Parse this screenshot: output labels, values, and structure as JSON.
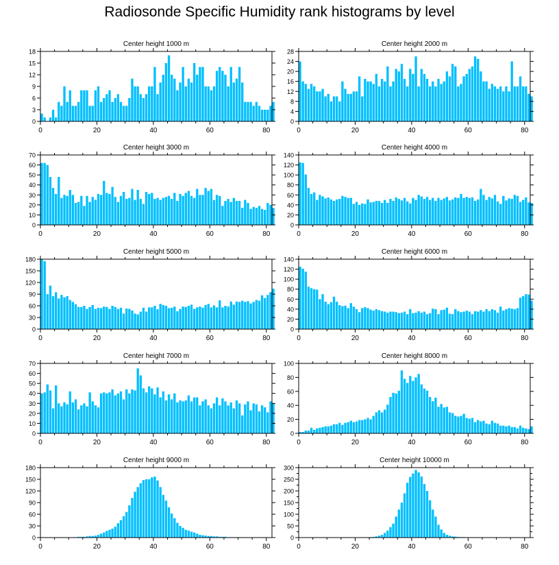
{
  "title": "Radiosonde Specific Humidity rank histograms by level",
  "colors": {
    "bar": "#00bfff",
    "axis": "#000000"
  },
  "chart_data": [
    {
      "type": "bar",
      "title": "Center height 1000 m",
      "xlim": [
        0,
        82
      ],
      "ylim": [
        0,
        18
      ],
      "xticks": [
        0,
        20,
        40,
        60,
        80
      ],
      "yticks": [
        0,
        3,
        6,
        9,
        12,
        15,
        18
      ],
      "values": [
        2,
        1,
        0,
        1,
        3,
        1,
        5,
        4,
        9,
        5,
        8,
        4,
        4,
        5,
        8,
        8,
        8,
        4,
        4,
        8,
        9,
        5,
        6,
        7,
        8,
        5,
        6,
        7,
        5,
        4,
        4,
        6,
        11,
        9,
        9,
        7,
        6,
        7,
        9,
        9,
        14,
        7,
        10,
        12,
        15,
        17,
        12,
        11,
        8,
        10,
        14,
        9,
        11,
        10,
        15,
        12,
        14,
        14,
        9,
        9,
        8,
        9,
        13,
        14,
        13,
        12,
        9,
        14,
        10,
        11,
        14,
        10,
        5,
        5,
        5,
        4,
        5,
        4,
        3,
        3,
        3,
        4,
        5
      ]
    },
    {
      "type": "bar",
      "title": "Center height 2000 m",
      "xlim": [
        0,
        82
      ],
      "ylim": [
        0,
        28
      ],
      "xticks": [
        0,
        20,
        40,
        60,
        80
      ],
      "yticks": [
        0,
        4,
        8,
        12,
        16,
        20,
        24,
        28
      ],
      "values": [
        24,
        16,
        15,
        13,
        15,
        14,
        12,
        12,
        13,
        10,
        11,
        8,
        10,
        10,
        8,
        16,
        13,
        11,
        11,
        12,
        12,
        18,
        10,
        17,
        16,
        16,
        15,
        19,
        14,
        17,
        16,
        22,
        14,
        16,
        21,
        20,
        23,
        17,
        14,
        21,
        19,
        26,
        14,
        21,
        19,
        17,
        14,
        16,
        14,
        17,
        15,
        16,
        20,
        18,
        23,
        22,
        14,
        15,
        18,
        19,
        21,
        22,
        26,
        25,
        20,
        16,
        16,
        13,
        15,
        14,
        13,
        14,
        12,
        14,
        12,
        24,
        14,
        14,
        18,
        14,
        14,
        11,
        10
      ]
    },
    {
      "type": "bar",
      "title": "Center height 3000 m",
      "xlim": [
        0,
        82
      ],
      "ylim": [
        0,
        70
      ],
      "xticks": [
        0,
        20,
        40,
        60,
        80
      ],
      "yticks": [
        0,
        10,
        20,
        30,
        40,
        50,
        60,
        70
      ],
      "values": [
        62,
        62,
        60,
        48,
        37,
        31,
        48,
        27,
        30,
        29,
        35,
        30,
        22,
        23,
        29,
        19,
        29,
        23,
        28,
        25,
        31,
        30,
        44,
        32,
        31,
        38,
        28,
        23,
        29,
        33,
        26,
        27,
        36,
        25,
        35,
        26,
        21,
        33,
        31,
        32,
        26,
        27,
        25,
        27,
        28,
        29,
        26,
        32,
        24,
        31,
        29,
        32,
        34,
        29,
        27,
        36,
        30,
        30,
        37,
        34,
        36,
        25,
        30,
        29,
        19,
        24,
        26,
        23,
        27,
        24,
        24,
        17,
        25,
        22,
        16,
        18,
        17,
        19,
        16,
        15,
        22,
        20,
        17
      ]
    },
    {
      "type": "bar",
      "title": "Center height 4000 m",
      "xlim": [
        0,
        82
      ],
      "ylim": [
        0,
        140
      ],
      "xticks": [
        0,
        20,
        40,
        60,
        80
      ],
      "yticks": [
        0,
        20,
        40,
        60,
        80,
        100,
        120,
        140
      ],
      "values": [
        125,
        124,
        101,
        74,
        62,
        65,
        50,
        60,
        57,
        53,
        55,
        51,
        48,
        51,
        52,
        58,
        56,
        54,
        54,
        42,
        46,
        40,
        43,
        42,
        51,
        45,
        46,
        48,
        48,
        44,
        50,
        44,
        52,
        48,
        55,
        52,
        49,
        54,
        47,
        43,
        54,
        50,
        60,
        57,
        52,
        56,
        50,
        54,
        48,
        54,
        50,
        53,
        56,
        49,
        51,
        55,
        54,
        62,
        54,
        56,
        54,
        55,
        48,
        51,
        72,
        60,
        50,
        56,
        53,
        60,
        47,
        42,
        58,
        49,
        53,
        52,
        60,
        58,
        46,
        50,
        55,
        45,
        44
      ]
    },
    {
      "type": "bar",
      "title": "Center height 5000 m",
      "xlim": [
        0,
        82
      ],
      "ylim": [
        0,
        180
      ],
      "xticks": [
        0,
        20,
        40,
        60,
        80
      ],
      "yticks": [
        0,
        30,
        60,
        90,
        120,
        150,
        180
      ],
      "values": [
        180,
        175,
        90,
        112,
        85,
        95,
        79,
        88,
        82,
        85,
        75,
        70,
        64,
        57,
        57,
        60,
        52,
        57,
        62,
        52,
        55,
        54,
        58,
        57,
        52,
        60,
        57,
        52,
        55,
        40,
        53,
        52,
        48,
        40,
        38,
        45,
        55,
        45,
        56,
        56,
        60,
        51,
        65,
        62,
        60,
        54,
        55,
        58,
        46,
        52,
        58,
        57,
        60,
        63,
        52,
        56,
        58,
        55,
        62,
        65,
        56,
        61,
        56,
        74,
        56,
        60,
        58,
        71,
        63,
        71,
        70,
        73,
        70,
        72,
        66,
        70,
        75,
        73,
        87,
        80,
        88,
        95,
        104
      ]
    },
    {
      "type": "bar",
      "title": "Center height 6000 m",
      "xlim": [
        0,
        82
      ],
      "ylim": [
        0,
        140
      ],
      "xticks": [
        0,
        20,
        40,
        60,
        80
      ],
      "yticks": [
        0,
        20,
        40,
        60,
        80,
        100,
        120,
        140
      ],
      "values": [
        125,
        121,
        115,
        85,
        82,
        80,
        79,
        60,
        70,
        55,
        50,
        54,
        65,
        55,
        48,
        46,
        47,
        42,
        52,
        45,
        40,
        34,
        42,
        44,
        42,
        39,
        37,
        40,
        38,
        36,
        35,
        33,
        35,
        35,
        34,
        32,
        33,
        35,
        30,
        40,
        32,
        33,
        36,
        33,
        35,
        30,
        32,
        41,
        40,
        30,
        38,
        39,
        43,
        31,
        30,
        40,
        36,
        34,
        35,
        37,
        35,
        30,
        36,
        35,
        38,
        35,
        40,
        36,
        40,
        38,
        33,
        45,
        37,
        40,
        42,
        41,
        40,
        42,
        63,
        66,
        70,
        69,
        57
      ]
    },
    {
      "type": "bar",
      "title": "Center height 7000 m",
      "xlim": [
        0,
        82
      ],
      "ylim": [
        0,
        70
      ],
      "xticks": [
        0,
        20,
        40,
        60,
        80
      ],
      "yticks": [
        0,
        10,
        20,
        30,
        40,
        50,
        60,
        70
      ],
      "values": [
        40,
        41,
        49,
        43,
        25,
        48,
        30,
        27,
        31,
        29,
        42,
        31,
        34,
        24,
        28,
        30,
        27,
        41,
        32,
        28,
        26,
        40,
        41,
        40,
        41,
        44,
        38,
        40,
        42,
        34,
        44,
        40,
        44,
        43,
        65,
        58,
        45,
        41,
        47,
        45,
        39,
        46,
        36,
        42,
        33,
        39,
        34,
        40,
        31,
        33,
        32,
        33,
        38,
        32,
        36,
        36,
        28,
        32,
        34,
        28,
        25,
        30,
        36,
        28,
        35,
        32,
        28,
        31,
        25,
        33,
        30,
        18,
        29,
        32,
        23,
        30,
        29,
        22,
        28,
        26,
        21,
        32,
        30
      ]
    },
    {
      "type": "bar",
      "title": "Center height 8000 m",
      "xlim": [
        0,
        82
      ],
      "ylim": [
        0,
        100
      ],
      "xticks": [
        0,
        20,
        40,
        60,
        80
      ],
      "yticks": [
        0,
        20,
        40,
        60,
        80,
        100
      ],
      "values": [
        2,
        2,
        4,
        4,
        8,
        5,
        7,
        8,
        9,
        10,
        10,
        11,
        13,
        13,
        15,
        12,
        15,
        16,
        18,
        16,
        17,
        19,
        19,
        20,
        22,
        20,
        25,
        30,
        33,
        30,
        34,
        41,
        52,
        58,
        57,
        61,
        90,
        78,
        72,
        82,
        75,
        80,
        85,
        70,
        64,
        61,
        52,
        46,
        51,
        38,
        42,
        37,
        38,
        30,
        29,
        25,
        24,
        25,
        28,
        22,
        21,
        22,
        16,
        19,
        17,
        18,
        14,
        13,
        18,
        15,
        14,
        11,
        11,
        10,
        11,
        9,
        9,
        7,
        11,
        8,
        7,
        6,
        10
      ]
    },
    {
      "type": "bar",
      "title": "Center height 9000 m",
      "xlim": [
        0,
        82
      ],
      "ylim": [
        0,
        180
      ],
      "xticks": [
        0,
        20,
        40,
        60,
        80
      ],
      "yticks": [
        0,
        30,
        60,
        90,
        120,
        150,
        180
      ],
      "values": [
        0,
        0,
        0,
        0,
        0,
        0,
        0,
        0,
        0,
        0,
        0,
        0,
        1,
        2,
        2,
        2,
        3,
        4,
        4,
        5,
        7,
        10,
        13,
        17,
        20,
        23,
        28,
        37,
        45,
        55,
        66,
        83,
        102,
        118,
        130,
        140,
        148,
        150,
        150,
        155,
        157,
        147,
        130,
        110,
        95,
        78,
        62,
        50,
        38,
        30,
        25,
        20,
        18,
        15,
        13,
        10,
        7,
        6,
        5,
        4,
        4,
        3,
        3,
        2,
        2,
        2,
        1,
        1,
        1,
        1,
        1,
        1,
        0,
        0,
        0,
        0,
        0,
        0,
        0,
        0,
        0,
        0,
        0
      ]
    },
    {
      "type": "bar",
      "title": "Center height 10000 m",
      "xlim": [
        0,
        82
      ],
      "ylim": [
        0,
        300
      ],
      "xticks": [
        0,
        20,
        40,
        60,
        80
      ],
      "yticks": [
        0,
        25,
        50,
        75,
        100,
        125,
        150,
        175,
        200,
        225,
        250,
        275,
        300
      ],
      "yticklabels_every": 2,
      "values": [
        0,
        0,
        0,
        0,
        0,
        0,
        0,
        0,
        0,
        0,
        0,
        0,
        0,
        0,
        0,
        0,
        0,
        0,
        0,
        0,
        0,
        0,
        0,
        1,
        1,
        2,
        3,
        5,
        8,
        12,
        20,
        30,
        45,
        60,
        90,
        120,
        150,
        190,
        235,
        260,
        275,
        290,
        280,
        262,
        230,
        200,
        160,
        120,
        90,
        55,
        35,
        20,
        12,
        8,
        5,
        4,
        3,
        2,
        2,
        1,
        1,
        1,
        1,
        1,
        1,
        1,
        1,
        0,
        0,
        0,
        0,
        0,
        0,
        0,
        0,
        0,
        0,
        0,
        0,
        0,
        0,
        0,
        0
      ]
    }
  ]
}
